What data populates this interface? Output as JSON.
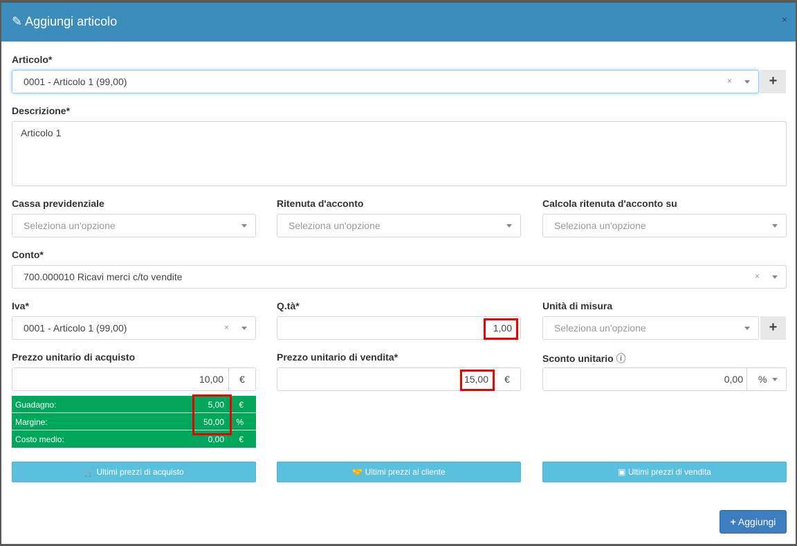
{
  "header": {
    "title": "Aggiungi articolo",
    "close": "×"
  },
  "articolo": {
    "label": "Articolo*",
    "value": "0001 - Articolo 1 (99,00)"
  },
  "descrizione": {
    "label": "Descrizione*",
    "value": "Articolo 1"
  },
  "cassa": {
    "label": "Cassa previdenziale",
    "placeholder": "Seleziona un'opzione"
  },
  "ritenuta": {
    "label": "Ritenuta d'acconto",
    "placeholder": "Seleziona un'opzione"
  },
  "calcola": {
    "label": "Calcola ritenuta d'acconto su",
    "placeholder": "Seleziona un'opzione"
  },
  "conto": {
    "label": "Conto*",
    "value": "700.000010 Ricavi merci c/to vendite"
  },
  "iva": {
    "label": "Iva*",
    "value": "0001 - Articolo 1 (99,00)"
  },
  "qta": {
    "label": "Q.tà*",
    "value": "1,00"
  },
  "um": {
    "label": "Unità di misura",
    "placeholder": "Seleziona un'opzione"
  },
  "acquisto": {
    "label": "Prezzo unitario di acquisto",
    "value": "10,00",
    "unit": "€"
  },
  "vendita": {
    "label": "Prezzo unitario di vendita*",
    "value": "15,00",
    "unit": "€"
  },
  "sconto": {
    "label": "Sconto unitario",
    "value": "0,00",
    "unit": "%"
  },
  "summary": [
    {
      "k": "Guadagno:",
      "v": "5,00",
      "u": "€"
    },
    {
      "k": "Margine:",
      "v": "50,00",
      "u": "%"
    },
    {
      "k": "Costo medio:",
      "v": "0,00",
      "u": "€"
    }
  ],
  "buttons": {
    "acquisto": "Ultimi prezzi di acquisto",
    "cliente": "Ultimi prezzi al cliente",
    "vendita": "Ultimi prezzi di vendita",
    "aggiungi": "Aggiungi"
  },
  "colors": {
    "header": "#3c8dbc",
    "summary": "#00a65a",
    "info": "#5bc0de",
    "primary": "#3c7ebf",
    "highlight": "#e00000"
  }
}
